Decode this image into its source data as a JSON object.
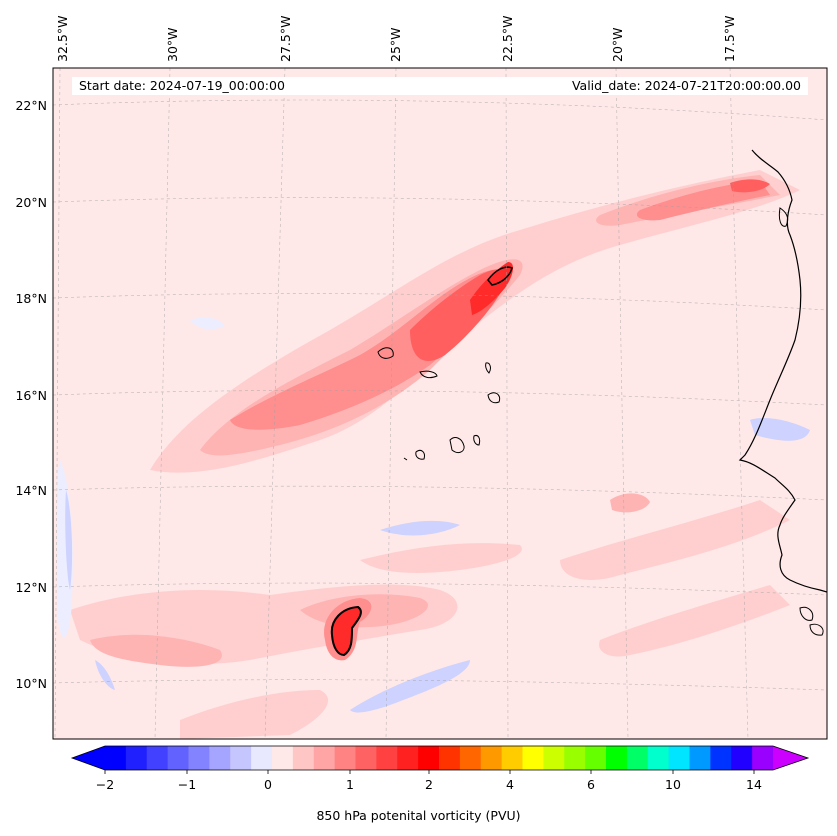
{
  "header": {
    "start_date": "Start date: 2024-07-19_00:00:00",
    "valid_date": "Valid_date: 2024-07-21T20:00:00.00"
  },
  "map": {
    "longitude_labels": [
      "32.5°W",
      "30°W",
      "27.5°W",
      "25°W",
      "22.5°W",
      "20°W",
      "17.5°W"
    ],
    "latitude_labels": [
      "22°N",
      "20°N",
      "18°N",
      "16°N",
      "14°N",
      "12°N",
      "10°N"
    ],
    "field": "850 hPa potential vorticity",
    "colors": {
      "negative_weak": "#eceeff",
      "negative_mid": "#cdd2ff",
      "negative_strong": "#9aa4f5",
      "positive_1": "#ffe8e8",
      "positive_2": "#ffcfcf",
      "positive_3": "#ffb4b4",
      "positive_4": "#ff8e8e",
      "positive_5": "#ff5f5f",
      "positive_6": "#ff2a2a",
      "positive_7": "#ff0000",
      "coast": "#000000"
    }
  },
  "colorbar": {
    "label": "850 hPa potenital vorticity (PVU)",
    "ticks": [
      "−2",
      "−1",
      "0",
      "1",
      "2",
      "4",
      "6",
      "10",
      "14"
    ],
    "colors": [
      "#0000ff",
      "#2020ff",
      "#4141ff",
      "#6262ff",
      "#8383ff",
      "#a5a5ff",
      "#c6c6ff",
      "#e8e8ff",
      "#ffe8e8",
      "#ffc6c6",
      "#ffa5a5",
      "#ff8383",
      "#ff6262",
      "#ff4141",
      "#ff2020",
      "#ff0000",
      "#ff3300",
      "#ff6600",
      "#ff9900",
      "#ffcc00",
      "#ffff00",
      "#ccff00",
      "#99ff00",
      "#66ff00",
      "#00ff00",
      "#00ff66",
      "#00ffcc",
      "#00e5ff",
      "#0099ff",
      "#0033ff",
      "#2200ff",
      "#9900ff"
    ],
    "extend_min_color": "#0000ff",
    "extend_max_color": "#cc00ff"
  }
}
